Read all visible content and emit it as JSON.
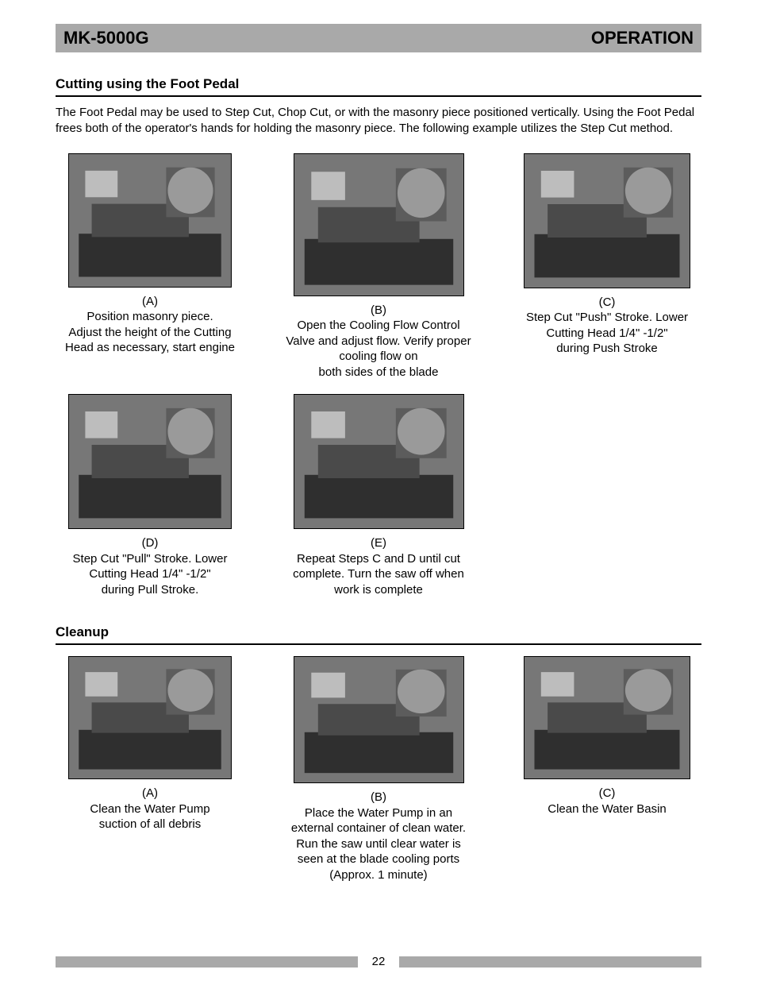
{
  "header": {
    "left": "MK-5000G",
    "right": "OPERATION"
  },
  "section1": {
    "heading": "Cutting using the Foot Pedal",
    "intro": "The Foot Pedal may be used to Step Cut, Chop Cut, or with the masonry piece positioned vertically.  Using the Foot Pedal frees both of the operator's hands for holding the masonry piece.  The following example utilizes the Step Cut method.",
    "figures": [
      {
        "label": "(A)",
        "caption": "Position masonry piece.\nAdjust the height of the Cutting Head as necessary, start engine",
        "cls": "img-a"
      },
      {
        "label": "(B)",
        "caption": "Open the Cooling Flow Control Valve and adjust flow. Verify proper cooling flow on\nboth sides of the blade",
        "cls": "img-b"
      },
      {
        "label": "(C)",
        "caption": "Step Cut \"Push\" Stroke. Lower Cutting Head 1/4\" -1/2\"\nduring Push Stroke",
        "cls": "img-c"
      },
      {
        "label": "(D)",
        "caption": "Step Cut \"Pull\" Stroke. Lower Cutting Head 1/4\" -1/2\"\nduring Pull Stroke.",
        "cls": "img-d"
      },
      {
        "label": "(E)",
        "caption": "Repeat Steps C and D until cut complete. Turn the saw off when work is complete",
        "cls": "img-e"
      }
    ]
  },
  "section2": {
    "heading": "Cleanup",
    "figures": [
      {
        "label": "(A)",
        "caption": "Clean the Water Pump\nsuction of all debris",
        "cls": "img-ca"
      },
      {
        "label": "(B)",
        "caption": "Place the Water Pump in an external container of clean water. Run the saw until clear water is seen at the blade cooling ports (Approx. 1 minute)",
        "cls": "img-cb"
      },
      {
        "label": "(C)",
        "caption": "Clean the Water Basin",
        "cls": "img-cc"
      }
    ]
  },
  "pageNumber": "22",
  "colors": {
    "barGray": "#a9a9a9",
    "imgGray": "#808080",
    "text": "#000000",
    "background": "#ffffff"
  },
  "typography": {
    "headerFontSize": 22,
    "headingFontSize": 17,
    "bodyFontSize": 15
  }
}
